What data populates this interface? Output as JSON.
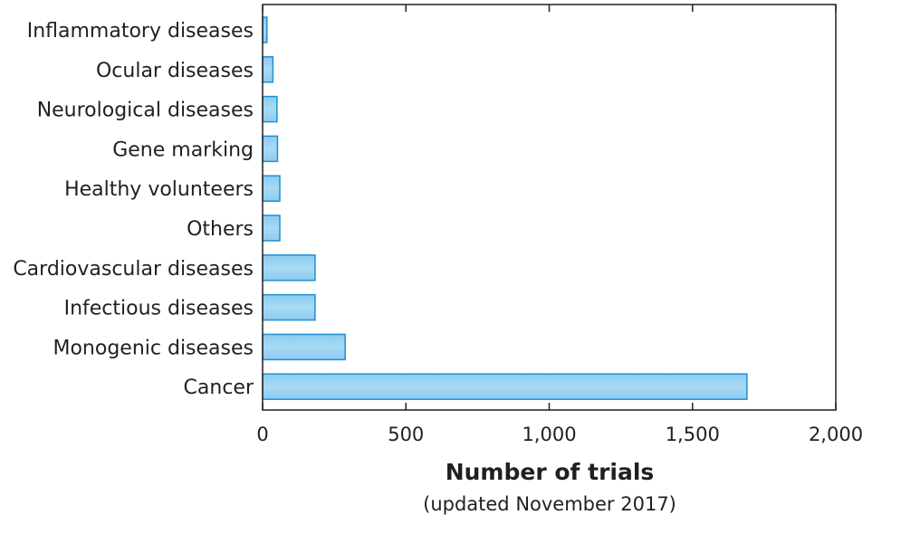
{
  "chart_data": {
    "type": "bar",
    "orientation": "horizontal",
    "categories": [
      "Inflammatory diseases",
      "Ocular diseases",
      "Neurological diseases",
      "Gene marking",
      "Healthy volunteers",
      "Others",
      "Cardiovascular diseases",
      "Infectious diseases",
      "Monogenic diseases",
      "Cancer"
    ],
    "values": [
      15,
      36,
      50,
      52,
      60,
      60,
      183,
      183,
      288,
      1690
    ],
    "xlabel": "Number of trials",
    "xlabel_sub": "(updated November 2017)",
    "xlim": [
      0,
      2000
    ],
    "xticks": [
      0,
      500,
      1000,
      1500,
      2000
    ],
    "xtick_labels": [
      "0",
      "500",
      "1,000",
      "1,500",
      "2,000"
    ],
    "grid": false,
    "bar_fill": "#9fd4f2",
    "bar_stroke": "#1f8fd1",
    "axis_color": "#231f20"
  }
}
